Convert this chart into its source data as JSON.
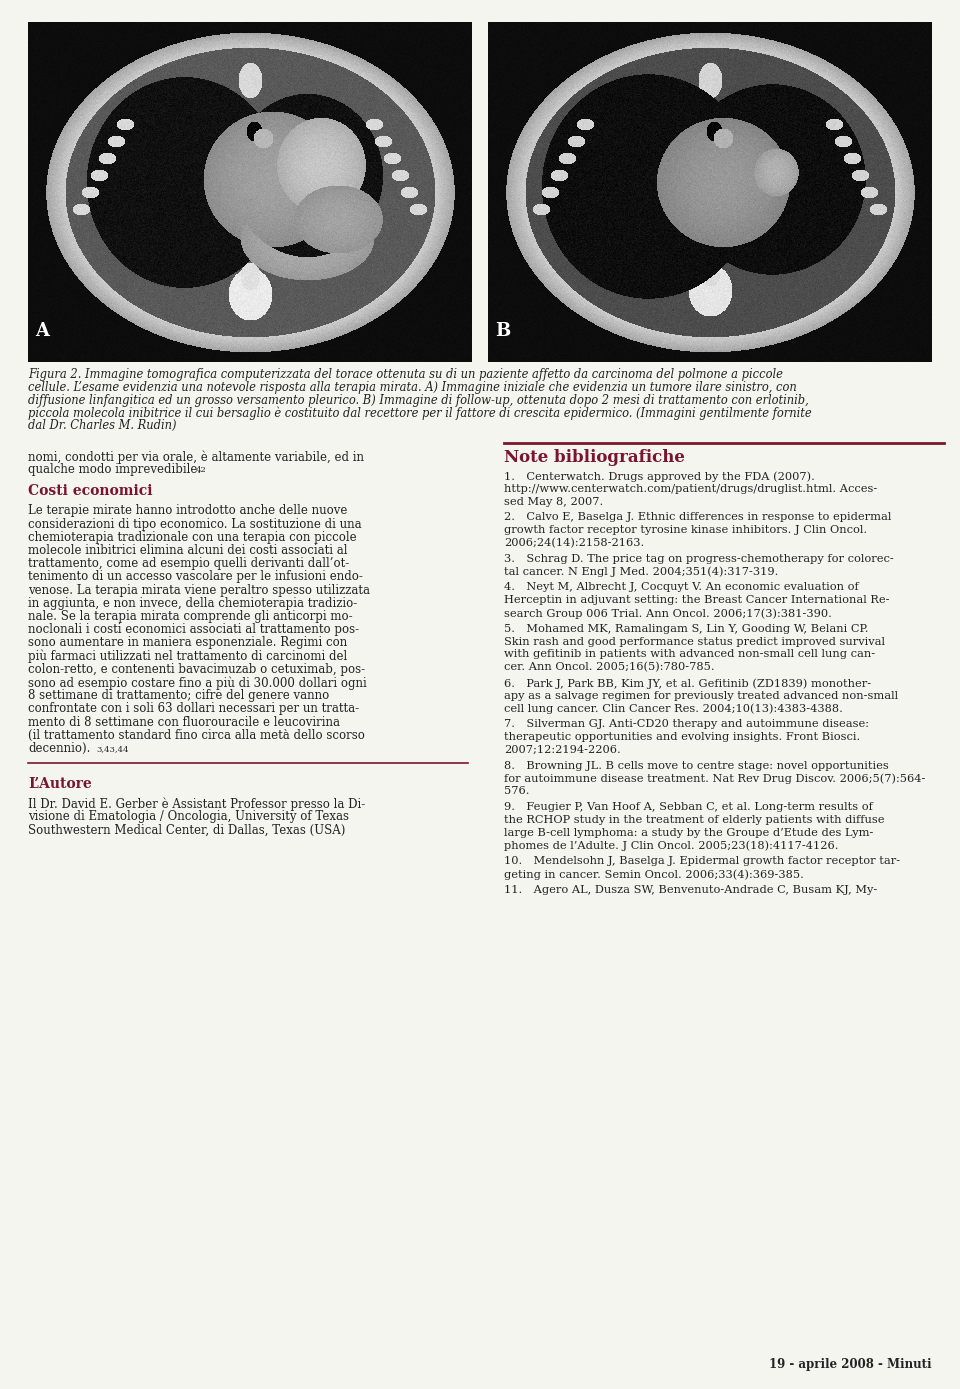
{
  "page_bg": "#f5f5f0",
  "label_A": "A",
  "label_B": "B",
  "caption_text": "Figura 2. Immagine tomografica computerizzata del torace ottenuta su di un paziente affetto da carcinoma del polmone a piccole cellule. L’esame evidenzia una notevole risposta alla terapia mirata. A) Immagine iniziale che evidenzia un tumore ilare sinistro, con diffusione linfangitica ed un grosso versamento pleurico. B) Immagine di follow-up, ottenuta dopo 2 mesi di trattamento con erlotinib, piccola molecola inibitrice il cui bersaglio è costituito dal recettore per il fattore di crescita epidermico. (Immagini gentilmente fornite dal Dr. Charles M. Rudin)",
  "cont_text_line1": "nomi, condotti per via orale, è altamente variabile, ed in",
  "cont_text_line2": "qualche modo imprevedibile.",
  "cont_superscript": "42",
  "heading1": "Costi economici",
  "body1": "Le terapie mirate hanno introdotto anche delle nuove considerazioni di tipo economico. La sostituzione di una chemioterapia tradizionale con una terapia con piccole molecole inibitrici elimina alcuni dei costi associati al trattamento, come ad esempio quelli derivanti dall’ottenimento di un accesso vascolare per le infusioni endovenose. La terapia mirata viene peraltro spesso utilizzata in aggiunta, e non invece, della chemioterapia tradizionale. Se la terapia mirata comprende gli anticorpi monoclonali i costi economici associati al trattamento possono aumentare in maniera esponenziale. Regimi con più farmaci utilizzati nel trattamento di carcinomi del colon-retto, e contenenti bavacimuzab o cetuximab, possono ad esempio costare fino a più di 30.000 dollari ogni 8 settimane di trattamento; cifre del genere vanno confrontate con i soli 63 dollari necessari per un trattamento di 8 settimane con fluorouracile e leucovirina (il trattamento standard fino circa alla metà dello scorso decennio).",
  "body1_superscript": "3,43,44",
  "heading2": "L’Autore",
  "body2": "Il Dr. David E. Gerber è Assistant Professor presso la Divisione di Ematologia / Oncologia, University of Texas Southwestern Medical Center, di Dallas, Texas (USA)",
  "right_heading": "Note bibliografiche",
  "refs": [
    "1. Centerwatch. Drugs approved by the FDA (2007). http://www.centerwatch.com/patient/drugs/druglist.html. Accessed May 8, 2007.",
    "2. Calvo E, Baselga J. Ethnic differences in response to epidermal growth factor receptor tyrosine kinase inhibitors. J Clin Oncol. 2006;24(14):2158-2163.",
    "3. Schrag D. The price tag on progress-chemotherapy for colorectal cancer. N Engl J Med. 2004;351(4):317-319.",
    "4. Neyt M, Albrecht J, Cocquyt V. An economic evaluation of Herceptin in adjuvant setting: the Breast Cancer International Research Group 006 Trial. Ann Oncol. 2006;17(3):381-390.",
    "5. Mohamed MK, Ramalingam S, Lin Y, Gooding W, Belani CP. Skin rash and good performance status predict improved survival with gefitinib in patients with advanced non-small cell lung cancer. Ann Oncol. 2005;16(5):780-785.",
    "6. Park J, Park BB, Kim JY, et al. Gefitinib (ZD1839) monotherapy as a salvage regimen for previously treated advanced non-small cell lung cancer. Clin Cancer Res. 2004;10(13):4383-4388.",
    "7. Silverman GJ. Anti-CD20 therapy and autoimmune disease: therapeutic opportunities and evolving insights. Front Biosci. 2007;12:2194-2206.",
    "8. Browning JL. B cells move to centre stage: novel opportunities for autoimmune disease treatment. Nat Rev Drug Discov. 2006;5(7):564-576.",
    "9. Feugier P, Van Hoof A, Sebban C, et al. Long-term results of the RCHOP study in the treatment of elderly patients with diffuse large B-cell lymphoma: a study by the Groupe d’Etude des Lymphomes de l’Adulte. J Clin Oncol. 2005;23(18):4117-4126.",
    "10. Mendelsohn J, Baselga J. Epidermal growth factor receptor targeting in cancer. Semin Oncol. 2006;33(4):369-385.",
    "11. Agero AL, Dusza SW, Benvenuto-Andrade C, Busam KJ, My-"
  ],
  "footer_text": "19 - aprile 2008 - Minuti",
  "heading_color": "#7a1530",
  "divider_color": "#7a1530",
  "text_color": "#222222",
  "caption_color": "#222222",
  "label_color": "#ffffff"
}
